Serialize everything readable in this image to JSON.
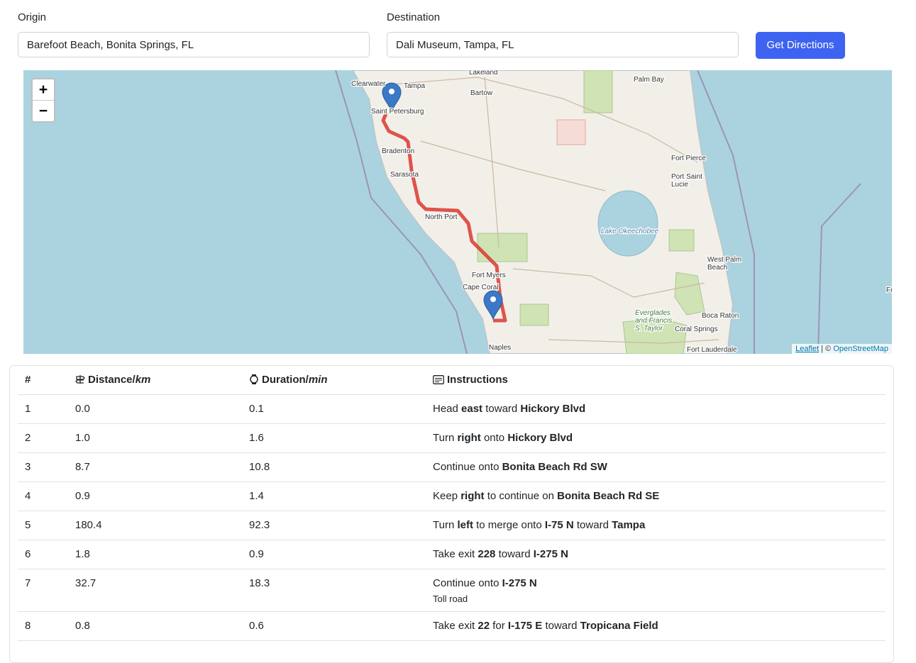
{
  "form": {
    "origin_label": "Origin",
    "origin_value": "Barefoot Beach, Bonita Springs, FL",
    "destination_label": "Destination",
    "destination_value": "Dali Museum, Tampa, FL",
    "button": "Get Directions"
  },
  "map": {
    "zoom_in": "+",
    "zoom_out": "−",
    "labels": [
      [
        "Lakeland"
      ],
      [
        "Clearwater"
      ],
      [
        "Tampa"
      ],
      [
        "Bartow"
      ],
      [
        "Palm Bay"
      ],
      [
        "Saint Petersburg"
      ],
      [
        "Bradenton"
      ],
      [
        "Sarasota"
      ],
      [
        "Fort Pierce"
      ],
      [
        "Port Saint",
        "Lucie"
      ],
      [
        "North Port"
      ],
      [
        "Lake Okeechobee"
      ],
      [
        "West Palm",
        "Beach"
      ],
      [
        "Fort Myers"
      ],
      [
        "Cape Coral"
      ],
      [
        "Boca Raton"
      ],
      [
        "Coral Springs"
      ],
      [
        "Naples"
      ],
      [
        "Fort Lauderdale"
      ],
      [
        "Everglades",
        "and Francis",
        "S. Taylor"
      ],
      [
        "Fr"
      ]
    ],
    "attribution_link": "Leaflet",
    "attribution_sep": "| ©",
    "attribution_osm": "OpenStreetMap"
  },
  "table": {
    "headers": {
      "num": "#",
      "distance": "Distance/",
      "distance_unit": "km",
      "duration": "Duration/",
      "duration_unit": "min",
      "instructions": "Instructions"
    },
    "rows": [
      {
        "step": "1",
        "distance": "0.0",
        "duration": "0.1",
        "instruction": [
          {
            "text": "Head "
          },
          {
            "text": "east",
            "bold": true
          },
          {
            "text": " toward "
          },
          {
            "text": "Hickory Blvd",
            "bold": true
          }
        ]
      },
      {
        "step": "2",
        "distance": "1.0",
        "duration": "1.6",
        "instruction": [
          {
            "text": "Turn "
          },
          {
            "text": "right",
            "bold": true
          },
          {
            "text": " onto "
          },
          {
            "text": "Hickory Blvd",
            "bold": true
          }
        ]
      },
      {
        "step": "3",
        "distance": "8.7",
        "duration": "10.8",
        "instruction": [
          {
            "text": "Continue onto "
          },
          {
            "text": "Bonita Beach Rd SW",
            "bold": true
          }
        ]
      },
      {
        "step": "4",
        "distance": "0.9",
        "duration": "1.4",
        "instruction": [
          {
            "text": "Keep "
          },
          {
            "text": "right",
            "bold": true
          },
          {
            "text": " to continue on "
          },
          {
            "text": "Bonita Beach Rd SE",
            "bold": true
          }
        ]
      },
      {
        "step": "5",
        "distance": "180.4",
        "duration": "92.3",
        "instruction": [
          {
            "text": "Turn "
          },
          {
            "text": "left",
            "bold": true
          },
          {
            "text": " to merge onto "
          },
          {
            "text": "I-75 N",
            "bold": true
          },
          {
            "text": " toward "
          },
          {
            "text": "Tampa",
            "bold": true
          }
        ]
      },
      {
        "step": "6",
        "distance": "1.8",
        "duration": "0.9",
        "instruction": [
          {
            "text": "Take exit "
          },
          {
            "text": "228",
            "bold": true
          },
          {
            "text": " toward "
          },
          {
            "text": "I-275 N",
            "bold": true
          }
        ]
      },
      {
        "step": "7",
        "distance": "32.7",
        "duration": "18.3",
        "instruction": [
          {
            "text": "Continue onto "
          },
          {
            "text": "I-275 N",
            "bold": true
          }
        ],
        "note": "Toll road"
      },
      {
        "step": "8",
        "distance": "0.8",
        "duration": "0.6",
        "instruction": [
          {
            "text": "Take exit "
          },
          {
            "text": "22",
            "bold": true
          },
          {
            "text": " for "
          },
          {
            "text": "I-175 E",
            "bold": true
          },
          {
            "text": " toward "
          },
          {
            "text": "Tropicana Field",
            "bold": true
          }
        ]
      }
    ]
  }
}
